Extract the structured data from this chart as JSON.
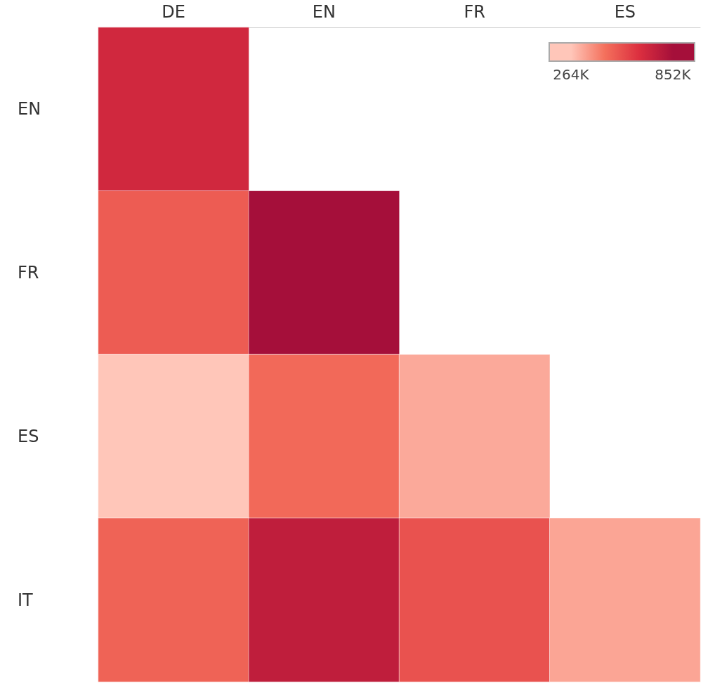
{
  "chart_data": {
    "type": "heatmap",
    "categories": [
      "DE",
      "EN",
      "FR",
      "ES"
    ],
    "y_categories": [
      "EN",
      "FR",
      "ES",
      "IT"
    ],
    "cells": [
      [
        700000,
        null,
        null,
        null
      ],
      [
        520000,
        852000,
        null,
        null
      ],
      [
        264000,
        480000,
        330000,
        null
      ],
      [
        500000,
        760000,
        550000,
        340000
      ]
    ],
    "clim": [
      264000,
      852000
    ],
    "cticks": [
      {
        "value": 264000,
        "label": "264K"
      },
      {
        "value": 852000,
        "label": "852K"
      }
    ],
    "colors": [
      "#ffc6b9",
      "#f4705c",
      "#dc2f3f",
      "#a50f3a"
    ]
  }
}
